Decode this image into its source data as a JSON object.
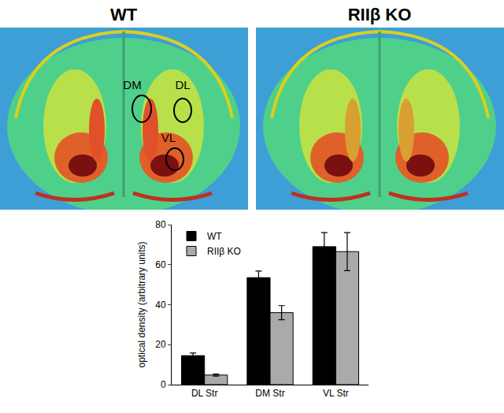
{
  "images": {
    "titles": [
      "WT",
      "RIIβ KO"
    ],
    "regions": [
      "DM",
      "DL",
      "VL"
    ]
  },
  "chart_data": {
    "type": "bar",
    "categories": [
      "DL Str",
      "DM Str",
      "VL Str"
    ],
    "series": [
      {
        "name": "WT",
        "color": "#000000",
        "values": [
          14.5,
          53.5,
          69
        ],
        "errors": [
          1.3,
          3.3,
          7
        ]
      },
      {
        "name": "RIIβ KO",
        "color": "#aaaaaa",
        "values": [
          4.8,
          36,
          66.5
        ],
        "errors": [
          0.5,
          3.5,
          9.5
        ]
      }
    ],
    "y_label": "optical density (arbitrary units)",
    "ylim": [
      0,
      80
    ],
    "yticks": [
      0,
      20,
      40,
      60,
      80
    ],
    "grid": false,
    "legend": "top-left"
  }
}
